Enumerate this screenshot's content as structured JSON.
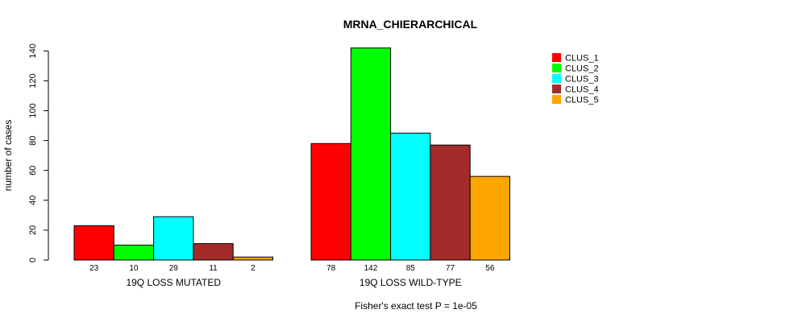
{
  "chart_data": {
    "type": "bar",
    "title": "MRNA_CHIERARCHICAL",
    "xlabel": "",
    "ylabel": "number of cases",
    "ylim": [
      0,
      145
    ],
    "yticks": [
      0,
      20,
      40,
      60,
      80,
      100,
      120,
      140
    ],
    "groups": [
      "19Q LOSS MUTATED",
      "19Q LOSS WILD-TYPE"
    ],
    "series": [
      {
        "name": "CLUS_1",
        "color": "#ff0000",
        "values": [
          23,
          78
        ]
      },
      {
        "name": "CLUS_2",
        "color": "#00ff00",
        "values": [
          10,
          142
        ]
      },
      {
        "name": "CLUS_3",
        "color": "#00ffff",
        "values": [
          29,
          85
        ]
      },
      {
        "name": "CLUS_4",
        "color": "#a52a2a",
        "values": [
          11,
          77
        ]
      },
      {
        "name": "CLUS_5",
        "color": "#ffa500",
        "values": [
          2,
          56
        ]
      }
    ],
    "legend_position": "top-right",
    "footnote": "Fisher's exact test P = 1e-05"
  }
}
